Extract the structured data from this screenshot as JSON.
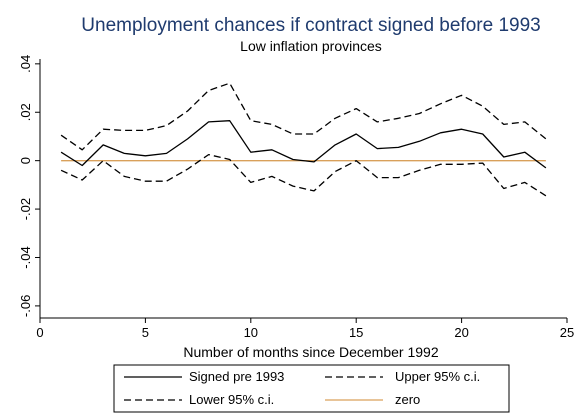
{
  "chart_data": {
    "type": "line",
    "title": "Unemployment chances if contract signed before 1993",
    "subtitle": "Low inflation provinces",
    "xlabel": "Number of months since December 1992",
    "ylabel": "",
    "xlim": [
      0,
      25
    ],
    "ylim": [
      -0.065,
      0.042
    ],
    "x_ticks": [
      0,
      5,
      10,
      15,
      20,
      25
    ],
    "x_tick_labels": [
      "0",
      "5",
      "10",
      "15",
      "20",
      "25"
    ],
    "y_ticks": [
      0.04,
      0.02,
      0,
      -0.02,
      -0.04,
      -0.06
    ],
    "y_tick_labels": [
      ".04",
      ".02",
      "0",
      "-.02",
      "-.04",
      "-.06"
    ],
    "x": [
      1,
      2,
      3,
      4,
      5,
      6,
      7,
      8,
      9,
      10,
      11,
      12,
      13,
      14,
      15,
      16,
      17,
      18,
      19,
      20,
      21,
      22,
      23,
      24
    ],
    "series": [
      {
        "name": "Signed pre 1993",
        "color": "#000000",
        "dash": "solid",
        "values": [
          0.0035,
          -0.002,
          0.0065,
          0.003,
          0.002,
          0.003,
          0.009,
          0.016,
          0.0165,
          0.0035,
          0.0045,
          0.0005,
          -0.0005,
          0.0065,
          0.011,
          0.005,
          0.0055,
          0.008,
          0.0115,
          0.013,
          0.011,
          0.0015,
          0.0035,
          -0.003
        ]
      },
      {
        "name": "Upper 95% c.i.",
        "color": "#000000",
        "dash": "dashed",
        "values": [
          0.0105,
          0.0045,
          0.013,
          0.0125,
          0.0125,
          0.0145,
          0.0205,
          0.029,
          0.032,
          0.0165,
          0.015,
          0.011,
          0.011,
          0.0175,
          0.0215,
          0.016,
          0.0175,
          0.0195,
          0.0235,
          0.027,
          0.0225,
          0.015,
          0.016,
          0.009
        ]
      },
      {
        "name": "Lower 95% c.i.",
        "color": "#000000",
        "dash": "dashed",
        "values": [
          -0.004,
          -0.008,
          0.0,
          -0.0065,
          -0.0085,
          -0.0085,
          -0.0035,
          0.0025,
          0.0005,
          -0.009,
          -0.0065,
          -0.0105,
          -0.0125,
          -0.0045,
          0.0,
          -0.007,
          -0.007,
          -0.004,
          -0.0015,
          -0.0015,
          -0.001,
          -0.0115,
          -0.009,
          -0.0145
        ]
      },
      {
        "name": "zero",
        "color": "#D9A05B",
        "dash": "solid",
        "values": [
          0,
          0,
          0,
          0,
          0,
          0,
          0,
          0,
          0,
          0,
          0,
          0,
          0,
          0,
          0,
          0,
          0,
          0,
          0,
          0,
          0,
          0,
          0,
          0
        ]
      }
    ],
    "legend": {
      "placement": "bottom",
      "entries": [
        "Signed pre 1993",
        "Upper 95% c.i.",
        "Lower 95% c.i.",
        "zero"
      ]
    },
    "grid": false,
    "title_color": "#1f3b6e"
  }
}
